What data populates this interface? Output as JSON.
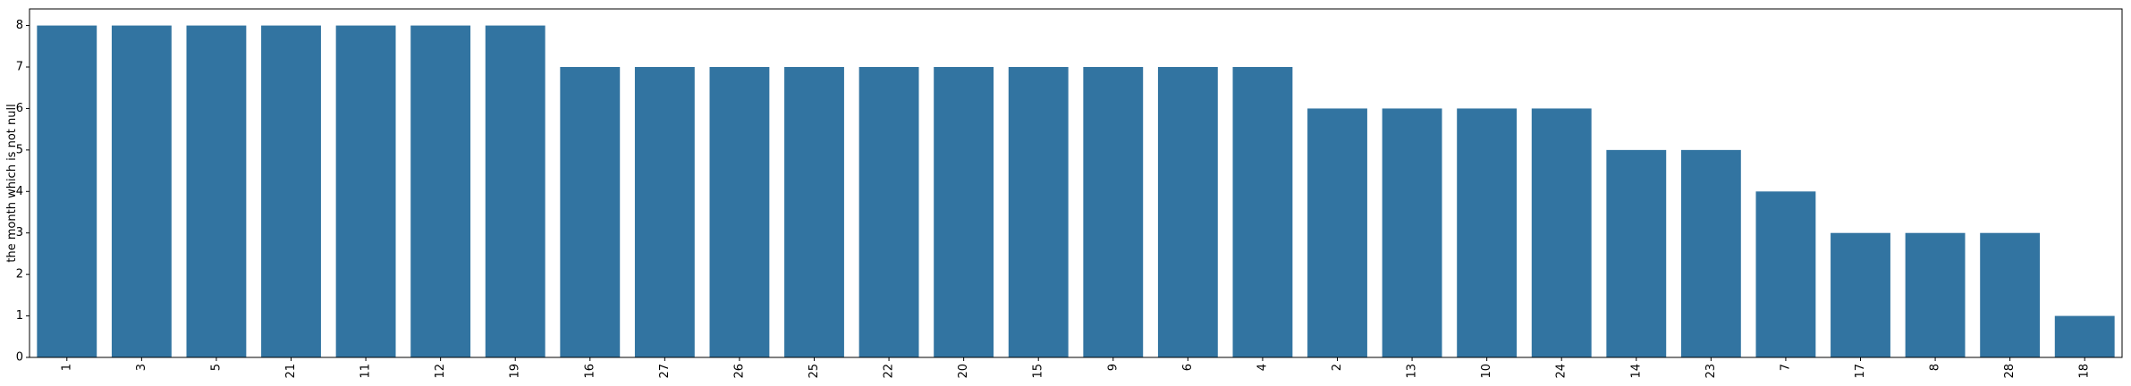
{
  "chart_data": {
    "type": "bar",
    "categories": [
      "1",
      "3",
      "5",
      "21",
      "11",
      "12",
      "19",
      "16",
      "27",
      "26",
      "25",
      "22",
      "20",
      "15",
      "9",
      "6",
      "4",
      "2",
      "13",
      "10",
      "24",
      "14",
      "23",
      "7",
      "17",
      "8",
      "28",
      "18"
    ],
    "values": [
      8,
      8,
      8,
      8,
      8,
      8,
      8,
      7,
      7,
      7,
      7,
      7,
      7,
      7,
      7,
      7,
      7,
      6,
      6,
      6,
      6,
      5,
      5,
      4,
      3,
      3,
      3,
      1
    ],
    "title": "",
    "xlabel": "",
    "ylabel": "the month which is not null",
    "ylim": [
      0,
      8.4
    ],
    "yticks": [
      0,
      1,
      2,
      3,
      4,
      5,
      6,
      7,
      8
    ],
    "grid": false,
    "bar_color": "#3274a1",
    "x_tick_rotation": "vertical"
  }
}
